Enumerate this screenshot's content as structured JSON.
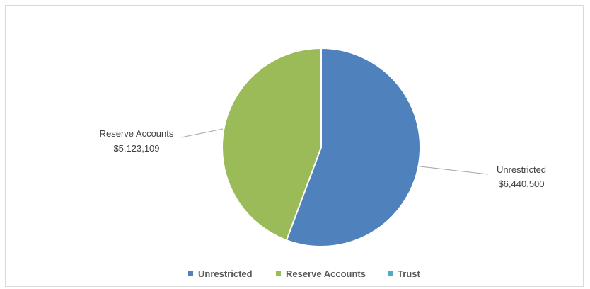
{
  "chart_data": {
    "type": "pie",
    "title": "",
    "slices": [
      {
        "name": "Unrestricted",
        "value": 6440500,
        "value_label": "$6,440,500",
        "color": "#4F81BD"
      },
      {
        "name": "Reserve Accounts",
        "value": 5123109,
        "value_label": "$5,123,109",
        "color": "#9BBB59"
      },
      {
        "name": "Trust",
        "value": 0,
        "value_label": "",
        "color": "#4BACC6"
      }
    ],
    "legend": {
      "position": "bottom",
      "items": [
        "Unrestricted",
        "Reserve Accounts",
        "Trust"
      ]
    }
  }
}
